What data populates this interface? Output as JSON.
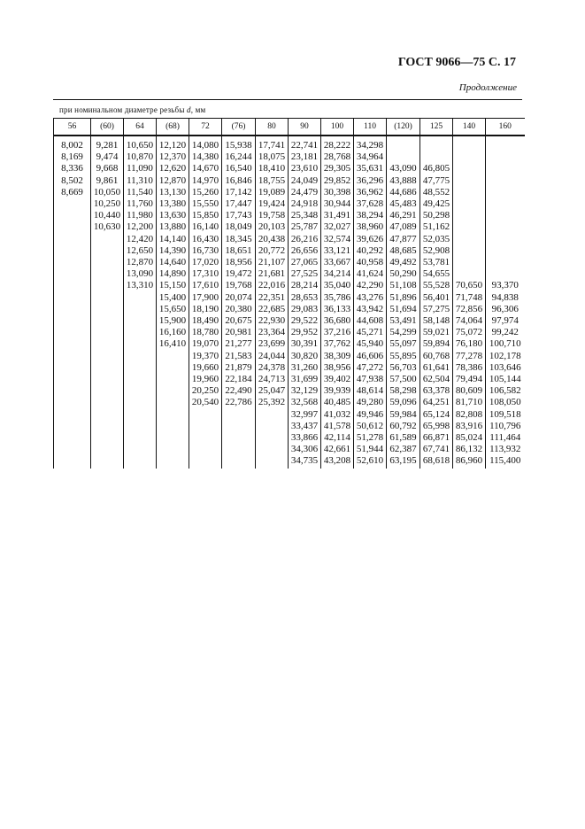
{
  "header": {
    "title": "ГОСТ 9066—75 С. 17",
    "continuation": "Продолжение"
  },
  "table": {
    "caption_prefix": "при номинальном диаметре резьбы ",
    "caption_var": "d",
    "caption_suffix": ", мм",
    "columns": [
      "56",
      "(60)",
      "64",
      "(68)",
      "72",
      "(76)",
      "80",
      "90",
      "100",
      "110",
      "(120)",
      "125",
      "140",
      "160"
    ],
    "data": [
      [
        "8,002",
        "8,169",
        "8,336",
        "8,502",
        "8,669"
      ],
      [
        "9,281",
        "9,474",
        "9,668",
        "9,861",
        "10,050",
        "10,250",
        "10,440",
        "10,630"
      ],
      [
        "10,650",
        "10,870",
        "11,090",
        "11,310",
        "11,540",
        "11,760",
        "11,980",
        "12,200",
        "12,420",
        "12,650",
        "12,870",
        "13,090",
        "13,310"
      ],
      [
        "12,120",
        "12,370",
        "12,620",
        "12,870",
        "13,130",
        "13,380",
        "13,630",
        "13,880",
        "14,140",
        "14,390",
        "14,640",
        "14,890",
        "15,150",
        "15,400",
        "15,650",
        "15,900",
        "16,160",
        "16,410"
      ],
      [
        "14,080",
        "14,380",
        "14,670",
        "14,970",
        "15,260",
        "15,550",
        "15,850",
        "16,140",
        "16,430",
        "16,730",
        "17,020",
        "17,310",
        "17,610",
        "17,900",
        "18,190",
        "18,490",
        "18,780",
        "19,070",
        "19,370",
        "19,660",
        "19,960",
        "20,250",
        "20,540"
      ],
      [
        "15,938",
        "16,244",
        "16,540",
        "16,846",
        "17,142",
        "17,447",
        "17,743",
        "18,049",
        "18,345",
        "18,651",
        "18,956",
        "19,472",
        "19,768",
        "20,074",
        "20,380",
        "20,675",
        "20,981",
        "21,277",
        "21,583",
        "21,879",
        "22,184",
        "22,490",
        "22,786"
      ],
      [
        "17,741",
        "18,075",
        "18,410",
        "18,755",
        "19,089",
        "19,424",
        "19,758",
        "20,103",
        "20,438",
        "20,772",
        "21,107",
        "21,681",
        "22,016",
        "22,351",
        "22,685",
        "22,930",
        "23,364",
        "23,699",
        "24,044",
        "24,378",
        "24,713",
        "25,047",
        "25,392"
      ],
      [
        "22,741",
        "23,181",
        "23,610",
        "24,049",
        "24,479",
        "24,918",
        "25,348",
        "25,787",
        "26,216",
        "26,656",
        "27,065",
        "27,525",
        "28,214",
        "28,653",
        "29,083",
        "29,522",
        "29,952",
        "30,391",
        "30,820",
        "31,260",
        "31,699",
        "32,129",
        "32,568",
        "32,997",
        "33,437",
        "33,866",
        "34,306",
        "34,735"
      ],
      [
        "28,222",
        "28,768",
        "29,305",
        "29,852",
        "30,398",
        "30,944",
        "31,491",
        "32,027",
        "32,574",
        "33,121",
        "33,667",
        "34,214",
        "35,040",
        "35,786",
        "36,133",
        "36,680",
        "37,216",
        "37,762",
        "38,309",
        "38,956",
        "39,402",
        "39,939",
        "40,485",
        "41,032",
        "41,578",
        "42,114",
        "42,661",
        "43,208"
      ],
      [
        "34,298",
        "34,964",
        "35,631",
        "36,296",
        "36,962",
        "37,628",
        "38,294",
        "38,960",
        "39,626",
        "40,292",
        "40,958",
        "41,624",
        "42,290",
        "43,276",
        "43,942",
        "44,608",
        "45,271",
        "45,940",
        "46,606",
        "47,272",
        "47,938",
        "48,614",
        "49,280",
        "49,946",
        "50,612",
        "51,278",
        "51,944",
        "52,610"
      ],
      [
        "",
        "",
        "43,090",
        "43,888",
        "44,686",
        "45,483",
        "46,291",
        "47,089",
        "47,877",
        "48,685",
        "49,492",
        "50,290",
        "51,108",
        "51,896",
        "51,694",
        "53,491",
        "54,299",
        "55,097",
        "55,895",
        "56,703",
        "57,500",
        "58,298",
        "59,096",
        "59,984",
        "60,792",
        "61,589",
        "62,387",
        "63,195"
      ],
      [
        "",
        "",
        "46,805",
        "47,775",
        "48,552",
        "49,425",
        "50,298",
        "51,162",
        "52,035",
        "52,908",
        "53,781",
        "54,655",
        "55,528",
        "56,401",
        "57,275",
        "58,148",
        "59,021",
        "59,894",
        "60,768",
        "61,641",
        "62,504",
        "63,378",
        "64,251",
        "65,124",
        "65,998",
        "66,871",
        "67,741",
        "68,618"
      ],
      [
        "",
        "",
        "",
        "",
        "",
        "",
        "",
        "",
        "",
        "",
        "",
        "",
        "70,650",
        "71,748",
        "72,856",
        "74,064",
        "75,072",
        "76,180",
        "77,278",
        "78,386",
        "79,494",
        "80,609",
        "81,710",
        "82,808",
        "83,916",
        "85,024",
        "86,132",
        "86,960"
      ],
      [
        "",
        "",
        "",
        "",
        "",
        "",
        "",
        "",
        "",
        "",
        "",
        "",
        "93,370",
        "94,838",
        "96,306",
        "97,974",
        "99,242",
        "100,710",
        "102,178",
        "103,646",
        "105,144",
        "106,582",
        "108,050",
        "109,518",
        "110,796",
        "111,464",
        "113,932",
        "115,400"
      ]
    ]
  }
}
